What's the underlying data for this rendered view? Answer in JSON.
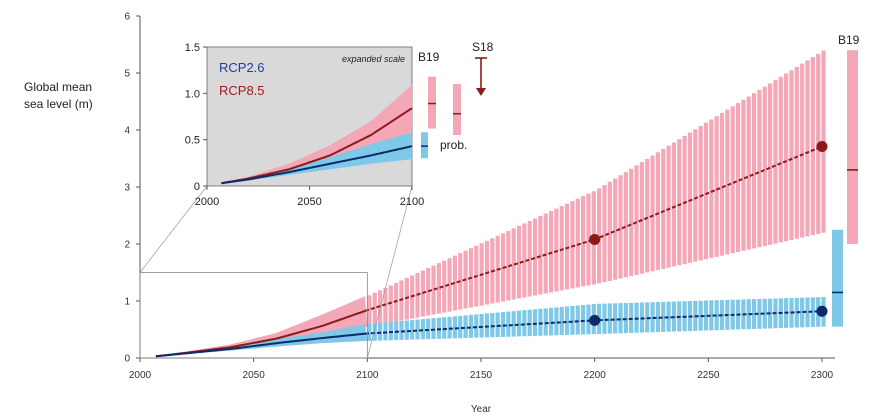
{
  "chart_data": [
    {
      "type": "line",
      "role": "main",
      "ylabel": [
        "Global mean",
        "sea level (m)"
      ],
      "xlabel": "Year",
      "xlim": [
        2000,
        2300
      ],
      "ylim": [
        0,
        6
      ],
      "xticks": [
        2000,
        2050,
        2100,
        2150,
        2200,
        2250,
        2300
      ],
      "yticks": [
        0,
        1,
        2,
        3,
        4,
        5,
        6
      ],
      "series": [
        {
          "name": "RCP8.5",
          "color": "#8b1a1a",
          "band_color": "#f4a7b7",
          "x": [
            2007,
            2020,
            2040,
            2060,
            2080,
            2100,
            2200,
            2300
          ],
          "y": [
            0.03,
            0.09,
            0.19,
            0.34,
            0.56,
            0.84,
            2.08,
            3.71
          ],
          "lower": [
            0.03,
            0.07,
            0.15,
            0.25,
            0.4,
            0.55,
            1.3,
            2.2
          ],
          "upper": [
            0.03,
            0.11,
            0.24,
            0.44,
            0.76,
            1.1,
            2.95,
            5.4
          ],
          "dashed_from": 2100,
          "markers": [
            {
              "x": 2200,
              "y": 2.08
            },
            {
              "x": 2300,
              "y": 3.71
            }
          ]
        },
        {
          "name": "RCP2.6",
          "color": "#0d2b6b",
          "band_color": "#7ec8e8",
          "x": [
            2007,
            2020,
            2040,
            2060,
            2080,
            2100,
            2200,
            2300
          ],
          "y": [
            0.03,
            0.08,
            0.16,
            0.26,
            0.35,
            0.43,
            0.66,
            0.82
          ],
          "lower": [
            0.03,
            0.07,
            0.13,
            0.2,
            0.26,
            0.3,
            0.42,
            0.55
          ],
          "upper": [
            0.03,
            0.09,
            0.2,
            0.33,
            0.45,
            0.6,
            0.95,
            1.07
          ],
          "dashed_from": 2100,
          "markers": [
            {
              "x": 2200,
              "y": 0.66
            },
            {
              "x": 2300,
              "y": 0.82
            }
          ]
        }
      ],
      "side_bars": [
        {
          "label": "B19",
          "scenario": "RCP8.5",
          "low": 2.0,
          "high": 5.4,
          "median": 3.3,
          "color": "#f4a7b7",
          "median_color": "#8b1a1a"
        },
        {
          "label": "",
          "scenario": "RCP2.6",
          "low": 0.55,
          "high": 2.25,
          "median": 1.15,
          "color": "#7ec8e8",
          "median_color": "#0d2b6b"
        }
      ]
    },
    {
      "type": "line",
      "role": "inset",
      "annotation": "expanded scale",
      "xlim": [
        2000,
        2100
      ],
      "ylim": [
        0,
        1.5
      ],
      "xticks": [
        2000,
        2050,
        2100
      ],
      "yticks": [
        0,
        0.5,
        1.0,
        1.5
      ],
      "ytick_labels": [
        "0",
        "0.5",
        "1.0",
        "1.5"
      ],
      "legend": [
        "RCP2.6",
        "RCP8.5"
      ],
      "background": "#d9d9d9",
      "series": [
        {
          "name": "RCP8.5",
          "color": "#8b1a1a",
          "band_color": "#f4a7b7",
          "x": [
            2007,
            2020,
            2040,
            2060,
            2080,
            2100
          ],
          "y": [
            0.03,
            0.08,
            0.18,
            0.33,
            0.55,
            0.84
          ],
          "lower": [
            0.03,
            0.06,
            0.14,
            0.24,
            0.39,
            0.59
          ],
          "upper": [
            0.03,
            0.1,
            0.24,
            0.44,
            0.7,
            1.09
          ]
        },
        {
          "name": "RCP2.6",
          "color": "#0d2b6b",
          "band_color": "#7ec8e8",
          "x": [
            2007,
            2020,
            2040,
            2060,
            2080,
            2100
          ],
          "y": [
            0.03,
            0.07,
            0.15,
            0.24,
            0.33,
            0.43
          ],
          "lower": [
            0.03,
            0.06,
            0.12,
            0.18,
            0.24,
            0.29
          ],
          "upper": [
            0.03,
            0.09,
            0.19,
            0.31,
            0.45,
            0.58
          ]
        }
      ],
      "side_bars": [
        {
          "label": "B19",
          "scenario": "RCP8.5",
          "low": 0.62,
          "high": 1.18,
          "median": 0.89,
          "color": "#f4a7b7",
          "median_color": "#8b1a1a"
        },
        {
          "label": "",
          "scenario": "RCP2.6",
          "low": 0.3,
          "high": 0.58,
          "median": 0.43,
          "color": "#7ec8e8",
          "median_color": "#0d2b6b"
        },
        {
          "label": "prob.",
          "scenario": "RCP8.5",
          "low": 0.55,
          "high": 1.1,
          "median": 0.78,
          "color": "#f4a7b7",
          "median_color": "#8b1a1a"
        }
      ],
      "arrow_marker": {
        "label": "S18",
        "from": 1.35,
        "to": 0.9,
        "color": "#8b1a1a"
      }
    }
  ]
}
